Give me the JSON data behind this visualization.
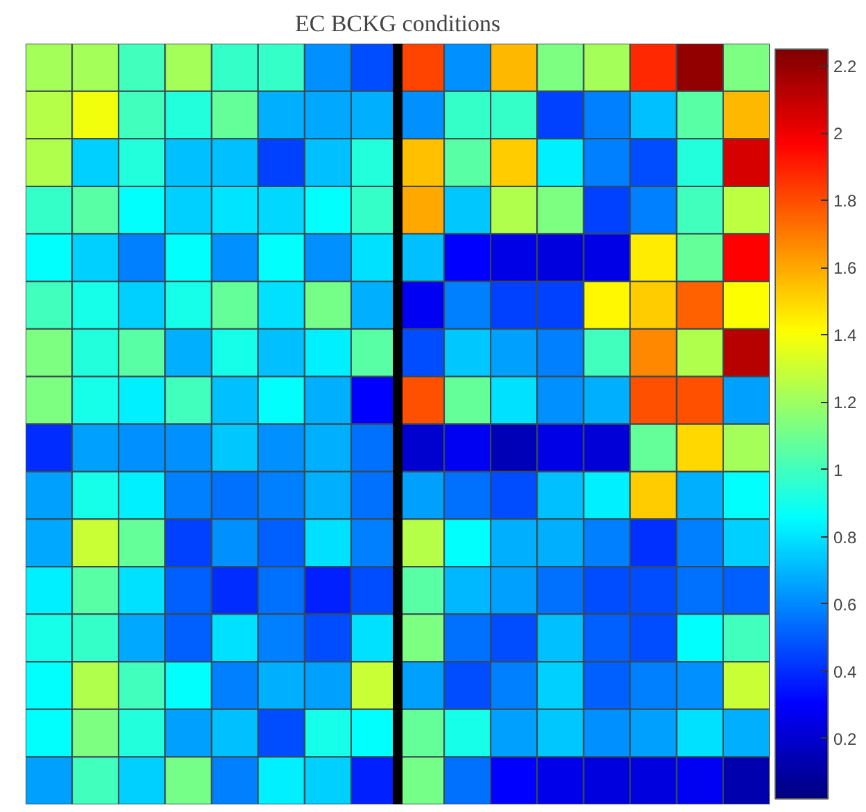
{
  "chart_data": {
    "type": "heatmap",
    "title": "EC BCKG conditions",
    "categories": [
      null,
      null,
      null,
      null,
      null,
      null,
      null,
      null,
      null,
      null,
      null,
      null,
      null,
      null,
      null,
      null
    ],
    "y_categories": [
      null,
      null,
      null,
      null,
      null,
      null,
      null,
      null,
      null,
      null,
      null,
      null,
      null,
      null,
      null,
      null
    ],
    "cells": [
      [
        1.22,
        1.22,
        1.0,
        1.22,
        0.97,
        0.97,
        0.62,
        0.47,
        1.82,
        0.62,
        1.57,
        1.13,
        1.22,
        1.88,
        2.2,
        1.13
      ],
      [
        1.25,
        1.38,
        1.0,
        0.93,
        1.08,
        0.69,
        0.67,
        0.69,
        0.62,
        0.97,
        0.97,
        0.44,
        0.58,
        0.72,
        1.05,
        1.57
      ],
      [
        1.24,
        0.76,
        0.93,
        0.72,
        0.72,
        0.44,
        0.72,
        0.93,
        1.55,
        1.05,
        1.52,
        0.83,
        0.58,
        0.47,
        0.93,
        2.05
      ],
      [
        0.97,
        1.05,
        0.86,
        0.76,
        0.8,
        0.77,
        0.86,
        0.97,
        1.6,
        0.74,
        1.24,
        1.13,
        0.44,
        0.58,
        1.0,
        1.27
      ],
      [
        0.86,
        0.76,
        0.58,
        0.86,
        0.62,
        0.86,
        0.62,
        0.79,
        0.72,
        0.3,
        0.25,
        0.23,
        0.25,
        1.45,
        1.08,
        1.97
      ],
      [
        1.0,
        0.9,
        0.76,
        0.9,
        1.08,
        0.79,
        1.11,
        0.69,
        0.28,
        0.58,
        0.44,
        0.44,
        1.43,
        1.52,
        1.76,
        1.41
      ],
      [
        1.13,
        0.93,
        1.05,
        0.69,
        0.9,
        0.72,
        0.83,
        1.05,
        0.47,
        0.74,
        0.65,
        0.58,
        1.0,
        1.67,
        1.24,
        2.12
      ],
      [
        1.13,
        0.9,
        0.83,
        1.0,
        0.72,
        0.86,
        0.69,
        0.3,
        1.79,
        1.08,
        0.79,
        0.62,
        0.69,
        1.79,
        1.79,
        0.65
      ],
      [
        0.4,
        0.65,
        0.62,
        0.62,
        0.74,
        0.62,
        0.69,
        0.55,
        0.2,
        0.28,
        0.15,
        0.25,
        0.22,
        1.08,
        1.5,
        1.22
      ],
      [
        0.65,
        0.9,
        0.83,
        0.58,
        0.55,
        0.58,
        0.69,
        0.55,
        0.65,
        0.55,
        0.47,
        0.72,
        0.83,
        1.52,
        0.69,
        0.86
      ],
      [
        0.67,
        1.3,
        1.08,
        0.44,
        0.62,
        0.51,
        0.79,
        0.58,
        1.25,
        0.86,
        0.69,
        0.69,
        0.58,
        0.41,
        0.58,
        0.76
      ],
      [
        0.83,
        1.05,
        0.79,
        0.51,
        0.4,
        0.55,
        0.37,
        0.47,
        1.05,
        0.7,
        0.65,
        0.55,
        0.47,
        0.47,
        0.55,
        0.51
      ],
      [
        0.9,
        0.97,
        0.67,
        0.51,
        0.79,
        0.58,
        0.47,
        0.79,
        1.13,
        0.55,
        0.47,
        0.72,
        0.51,
        0.47,
        0.86,
        1.0
      ],
      [
        0.86,
        1.24,
        1.0,
        0.86,
        0.58,
        0.69,
        0.65,
        1.3,
        0.65,
        0.47,
        0.58,
        0.76,
        0.51,
        0.58,
        0.62,
        1.3
      ],
      [
        0.86,
        1.13,
        0.93,
        0.65,
        0.72,
        0.47,
        0.9,
        0.86,
        1.08,
        0.9,
        0.65,
        0.74,
        0.62,
        0.65,
        0.79,
        0.69
      ],
      [
        0.65,
        1.0,
        0.76,
        1.11,
        0.58,
        0.83,
        0.76,
        0.37,
        1.11,
        0.55,
        0.3,
        0.26,
        0.23,
        0.23,
        0.28,
        0.13
      ]
    ],
    "clim": [
      0.02,
      2.25
    ],
    "cticks": [
      0.2,
      0.4,
      0.6,
      0.8,
      1,
      1.2,
      1.4,
      1.6,
      1.8,
      2,
      2.2
    ],
    "tick_labels": false
  }
}
